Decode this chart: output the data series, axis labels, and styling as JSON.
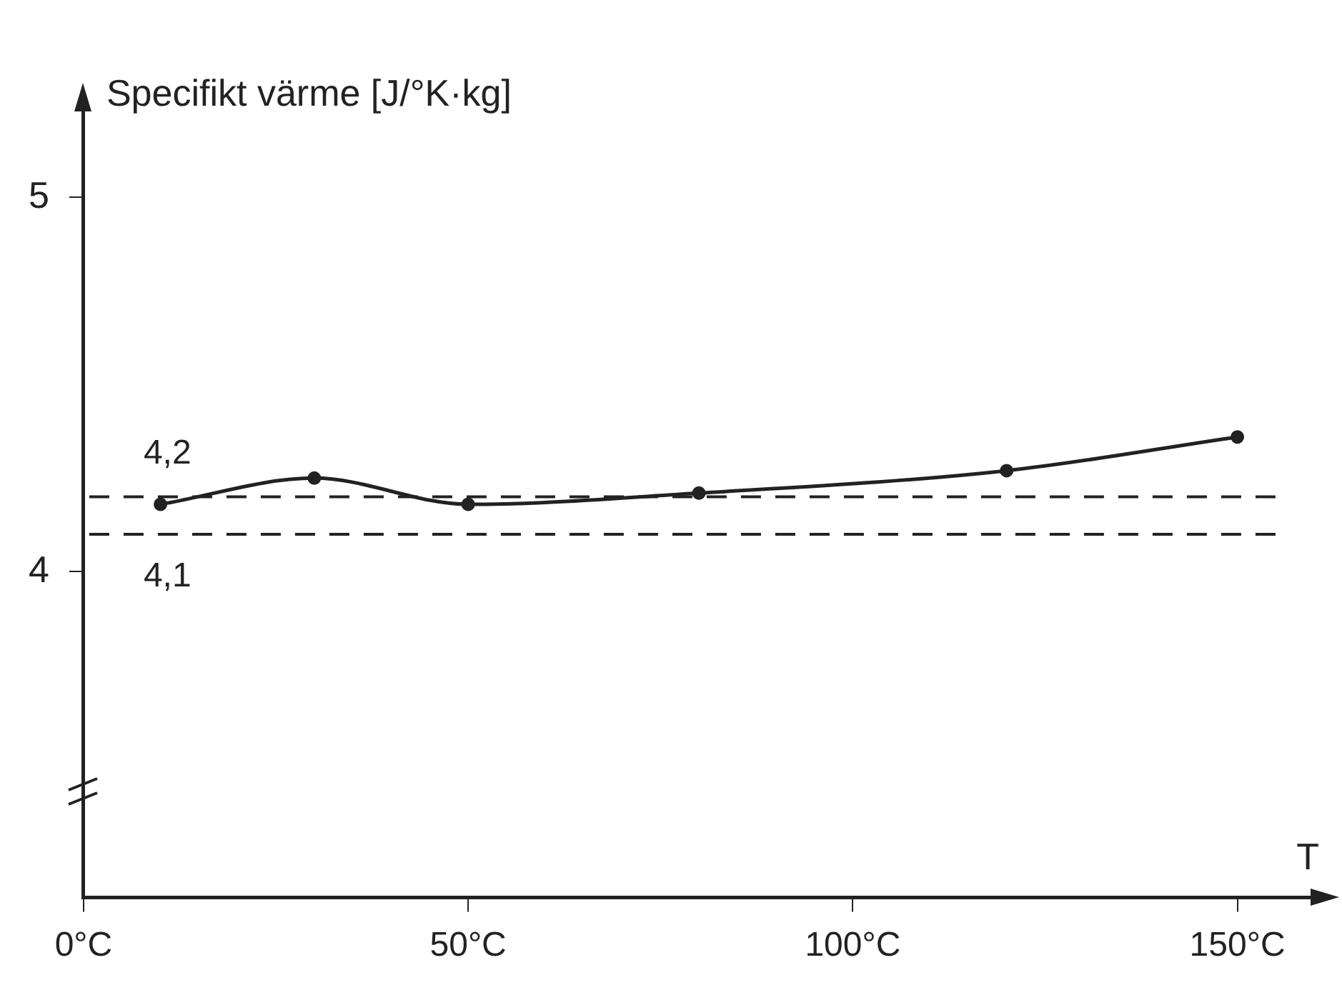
{
  "chart_data": {
    "type": "line",
    "xlabel": "T",
    "ylabel": "Specifikt värme [J/°K·kg]",
    "x": [
      10,
      30,
      50,
      80,
      120,
      150
    ],
    "series": [
      {
        "color": "#222222",
        "values": [
          4.18,
          4.25,
          4.18,
          4.21,
          4.27,
          4.36
        ]
      }
    ],
    "xlim": [
      0,
      161
    ],
    "ylim": [
      3.13,
      5.26
    ],
    "xticks": [
      {
        "value": 0,
        "label": "0°C"
      },
      {
        "value": 50,
        "label": "50°C"
      },
      {
        "value": 100,
        "label": "100°C"
      },
      {
        "value": 150,
        "label": "150°C"
      }
    ],
    "yticks": [
      4,
      5
    ],
    "ref_lines": [
      {
        "axis": "y",
        "value": 4.2,
        "label": "4,2",
        "line_style": "dashed",
        "color": "#222222"
      },
      {
        "axis": "y",
        "value": 4.1,
        "label": "4,1",
        "line_style": "dashed",
        "color": "#222222"
      }
    ],
    "grid": false,
    "legend": false,
    "marker": "circle",
    "line_style": "solid"
  }
}
